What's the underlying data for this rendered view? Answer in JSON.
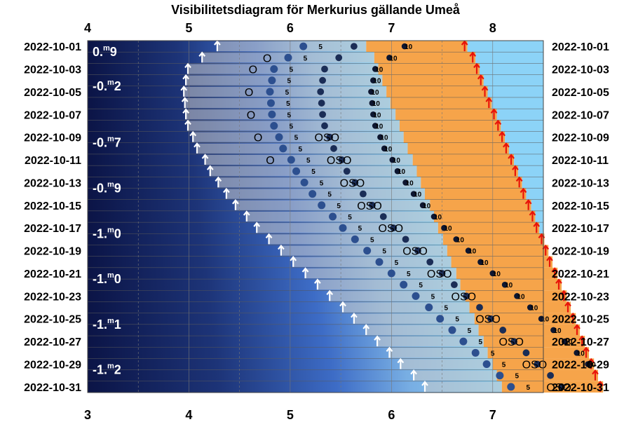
{
  "chart_data": {
    "type": "timeline",
    "title": "Visibilitetsdiagram för Merkurius gällande Umeå",
    "x_axis_top": {
      "ticks": [
        "4",
        "5",
        "6",
        "7",
        "8"
      ],
      "hours_start": 4.0,
      "hours_end": 8.5
    },
    "x_axis_bottom": {
      "ticks": [
        "3",
        "4",
        "5",
        "6",
        "7"
      ],
      "hours_start": 3.0,
      "hours_end": 7.5
    },
    "date_labels": [
      "2022-10-01",
      "2022-10-03",
      "2022-10-05",
      "2022-10-07",
      "2022-10-09",
      "2022-10-11",
      "2022-10-13",
      "2022-10-15",
      "2022-10-17",
      "2022-10-19",
      "2022-10-21",
      "2022-10-23",
      "2022-10-25",
      "2022-10-27",
      "2022-10-29",
      "2022-10-31"
    ],
    "magnitudes": [
      {
        "day": 1.5,
        "value": "0",
        "decimals": "9"
      },
      {
        "day": 4.5,
        "value": "-0",
        "decimals": "2"
      },
      {
        "day": 9.5,
        "value": "-0",
        "decimals": "7"
      },
      {
        "day": 13.5,
        "value": "-0",
        "decimals": "9"
      },
      {
        "day": 17.5,
        "value": "-1",
        "decimals": "0"
      },
      {
        "day": 21.5,
        "value": "-1",
        "decimals": "0"
      },
      {
        "day": 25.5,
        "value": "-1",
        "decimals": "1"
      },
      {
        "day": 29.5,
        "value": "-1",
        "decimals": "2"
      }
    ],
    "magnitude_unit": "m",
    "sunrise_hours": [
      7.75,
      7.83,
      7.87,
      7.91,
      7.95,
      7.99,
      8.04,
      8.08,
      8.12,
      8.16,
      8.21,
      8.25,
      8.29,
      8.33,
      8.38,
      8.42,
      8.46,
      8.51,
      8.55,
      8.59,
      8.64,
      8.68,
      8.73,
      8.77,
      8.82,
      8.86,
      8.91,
      8.95,
      9.0,
      9.04,
      9.09
    ],
    "mercury_rise_hours": [
      5.28,
      5.13,
      4.99,
      4.97,
      4.95,
      4.96,
      4.97,
      4.99,
      5.04,
      5.08,
      5.16,
      5.21,
      5.29,
      5.37,
      5.46,
      5.57,
      5.67,
      5.79,
      5.91,
      6.03,
      6.15,
      6.27,
      6.39,
      6.52,
      6.63,
      6.75,
      6.86,
      6.98,
      7.09,
      7.22,
      7.33
    ],
    "direction_labels": [
      {
        "day": 2,
        "text": "O"
      },
      {
        "day": 3,
        "text": "O"
      },
      {
        "day": 5,
        "text": "O"
      },
      {
        "day": 7,
        "text": "O"
      },
      {
        "day": 9,
        "text": "O"
      },
      {
        "day": 11,
        "text": "O"
      },
      {
        "day": 9,
        "text": "OSO"
      },
      {
        "day": 11,
        "text": "OSO"
      },
      {
        "day": 13,
        "text": "OSO"
      },
      {
        "day": 15,
        "text": "OSO"
      },
      {
        "day": 17,
        "text": "OSO"
      },
      {
        "day": 19,
        "text": "OSO"
      },
      {
        "day": 21,
        "text": "OSO"
      },
      {
        "day": 23,
        "text": "OSO"
      },
      {
        "day": 25,
        "text": "OSO"
      },
      {
        "day": 27,
        "text": "OSO"
      },
      {
        "day": 29,
        "text": "OSO"
      },
      {
        "day": 31,
        "text": "OSO"
      }
    ],
    "altitude_labels": [
      "5",
      "10"
    ]
  },
  "colors": {
    "night": "#0b1446",
    "dawn_blue": "#3d6cc6",
    "day_sky": "#8cd3f7",
    "twilight_orange": "#f59a36",
    "mercury_up": "#c8c8c8",
    "sun_arrow": "#e8140a",
    "mercury_arrow": "#ffffff"
  }
}
